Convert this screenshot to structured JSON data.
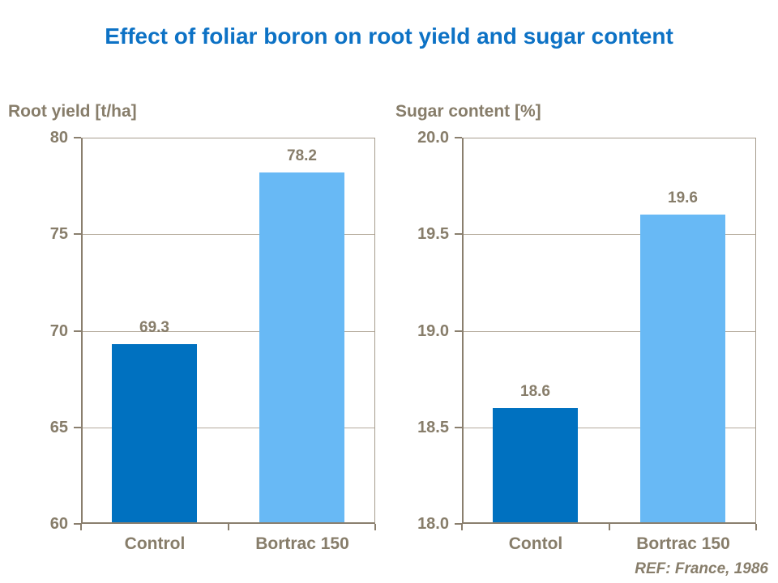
{
  "page_title": "Effect of foliar boron on root yield and sugar content",
  "footer": {
    "ref": "REF: France, 1986"
  },
  "colors": {
    "title_blue": "#0d72c5",
    "dark_bar_blue": "#0071c0",
    "light_bar_blue": "#68b9f5",
    "axis_text_brown": "#877d6a",
    "axis_line_brown": "#8a7f6e",
    "gridline_gray": "#b5ab9c"
  },
  "chart_data": [
    {
      "type": "bar",
      "title": "Root yield [t/ha]",
      "categories": [
        "Control",
        "Bortrac 150"
      ],
      "values": [
        69.3,
        78.2
      ],
      "data_labels": [
        "69.3",
        "78.2"
      ],
      "bar_colors": [
        "#0071c0",
        "#68b9f5"
      ],
      "ylim": [
        60,
        80
      ],
      "ytick_values": [
        80,
        75,
        70,
        65,
        60
      ],
      "ytick_labels": [
        "80",
        "75",
        "70",
        "65",
        "60"
      ],
      "xlabel": "",
      "ylabel": "",
      "grid": true,
      "legend": "none"
    },
    {
      "type": "bar",
      "title": "Sugar content [%]",
      "categories": [
        "Contol",
        "Bortrac 150"
      ],
      "values": [
        18.6,
        19.6
      ],
      "data_labels": [
        "18.6",
        "19.6"
      ],
      "bar_colors": [
        "#0071c0",
        "#68b9f5"
      ],
      "ylim": [
        18.0,
        20.0
      ],
      "ytick_values": [
        20.0,
        19.5,
        19.0,
        18.5,
        18.0
      ],
      "ytick_labels": [
        "20.0",
        "19.5",
        "19.0",
        "18.5",
        "18.0"
      ],
      "xlabel": "",
      "ylabel": "",
      "grid": true,
      "legend": "none"
    }
  ]
}
